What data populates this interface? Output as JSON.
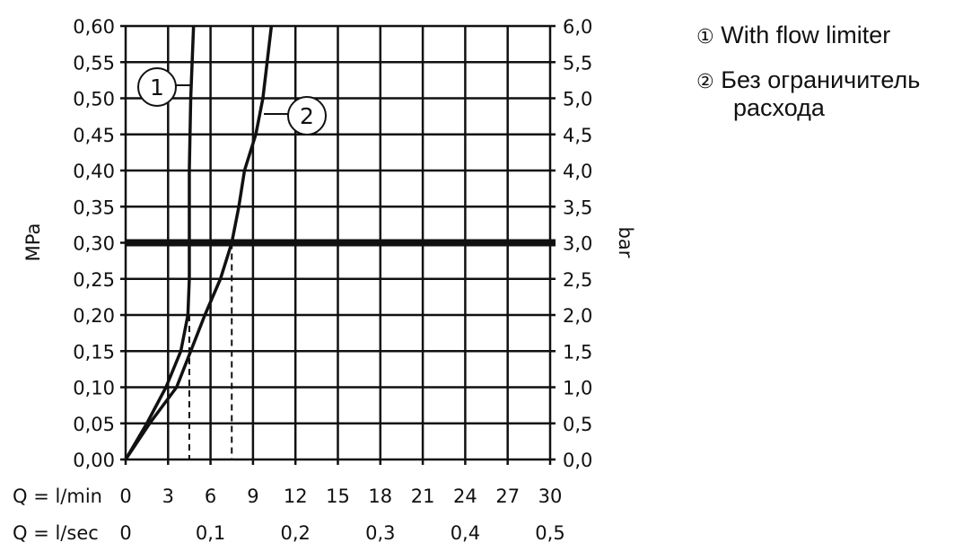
{
  "chart_data": {
    "type": "line",
    "xlabel": "Q = l/min",
    "xlabel2": "Q = l/sec",
    "ylabel": "MPa",
    "ylabel_right": "bar",
    "xlim": [
      0,
      30
    ],
    "ylim": [
      0,
      0.6
    ],
    "x_ticks": [
      "0",
      "3",
      "6",
      "9",
      "12",
      "15",
      "18",
      "21",
      "24",
      "27",
      "30"
    ],
    "x2_ticks": [
      {
        "v": 0,
        "label": "0"
      },
      {
        "v": 6,
        "label": "0,1"
      },
      {
        "v": 12,
        "label": "0,2"
      },
      {
        "v": 18,
        "label": "0,3"
      },
      {
        "v": 24,
        "label": "0,4"
      },
      {
        "v": 30,
        "label": "0,5"
      }
    ],
    "y_ticks": [
      "0,00",
      "0,05",
      "0,10",
      "0,15",
      "0,20",
      "0,25",
      "0,30",
      "0,35",
      "0,40",
      "0,45",
      "0,50",
      "0,55",
      "0,60"
    ],
    "y_right_ticks": [
      "0,0",
      "0,5",
      "1,0",
      "1,5",
      "2,0",
      "2,5",
      "3,0",
      "3,5",
      "4,0",
      "4,5",
      "5,0",
      "5,5",
      "6,0"
    ],
    "grid": true,
    "reference_line": {
      "y": 0.3
    },
    "dashed_markers": [
      {
        "x": 4.5,
        "y": 0.2
      },
      {
        "x": 7.5,
        "y": 0.3
      }
    ],
    "series": [
      {
        "name": "With flow limiter",
        "label": "1",
        "x": [
          0,
          1.5,
          2.85,
          3.9,
          4.4,
          4.5,
          4.5,
          4.5,
          4.6,
          4.8
        ],
        "y": [
          0,
          0.05,
          0.1,
          0.15,
          0.2,
          0.25,
          0.3,
          0.4,
          0.5,
          0.6
        ]
      },
      {
        "name": "Без ограничитель расхода",
        "label": "2",
        "x": [
          0,
          1.7,
          3.6,
          4.6,
          5.6,
          6.7,
          7.5,
          8.0,
          8.4,
          9.2,
          9.7,
          10.3
        ],
        "y": [
          0,
          0.05,
          0.1,
          0.15,
          0.2,
          0.25,
          0.3,
          0.35,
          0.4,
          0.45,
          0.5,
          0.6
        ]
      }
    ]
  },
  "legend": [
    {
      "marker": "①",
      "text": "With flow limiter"
    },
    {
      "marker": "②",
      "text": "Без ограничитель",
      "text2": "расхода"
    }
  ]
}
